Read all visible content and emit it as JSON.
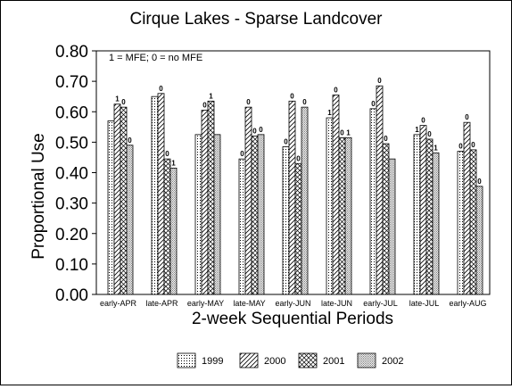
{
  "chart_data": {
    "type": "bar",
    "title": "Cirque Lakes - Sparse Landcover",
    "xlabel": "2-week Sequential Periods",
    "ylabel": "Proportional Use",
    "annotation": "1 = MFE; 0 = no MFE",
    "ylim": [
      0,
      0.8
    ],
    "yticks": [
      "0.00",
      "0.10",
      "0.20",
      "0.30",
      "0.40",
      "0.50",
      "0.60",
      "0.70",
      "0.80"
    ],
    "grid": false,
    "legend_position": "bottom-right",
    "categories": [
      "early-APR",
      "late-APR",
      "early-MAY",
      "late-MAY",
      "early-JUN",
      "late-JUN",
      "early-JUL",
      "late-JUL",
      "early-AUG"
    ],
    "series": [
      {
        "name": "1999",
        "pattern": "dots",
        "values": [
          0.57,
          0.65,
          0.525,
          0.445,
          0.485,
          0.58,
          0.61,
          0.525,
          0.47
        ],
        "flags": [
          "",
          "",
          "",
          "0",
          "0",
          "1",
          "0",
          "1",
          "0"
        ]
      },
      {
        "name": "2000",
        "pattern": "diagonal",
        "values": [
          0.625,
          0.66,
          0.605,
          0.615,
          0.635,
          0.655,
          0.685,
          0.555,
          0.565
        ],
        "flags": [
          "1",
          "0",
          "0",
          "0",
          "0",
          "0",
          "0",
          "0",
          "0"
        ]
      },
      {
        "name": "2001",
        "pattern": "crosshatch",
        "values": [
          0.615,
          0.445,
          0.635,
          0.52,
          0.43,
          0.515,
          0.495,
          0.51,
          0.475
        ],
        "flags": [
          "0",
          "0",
          "1",
          "0",
          "0",
          "0",
          "0",
          "0",
          "0"
        ]
      },
      {
        "name": "2002",
        "pattern": "dense",
        "values": [
          0.49,
          0.415,
          0.525,
          0.525,
          0.615,
          0.515,
          0.445,
          0.465,
          0.355
        ],
        "flags": [
          "0",
          "1",
          "",
          "0",
          "0",
          "1",
          "",
          "1",
          "0"
        ]
      }
    ],
    "colors": {
      "bar_fill": "#ffffff",
      "stroke": "#000000",
      "background": "#ffffff"
    }
  }
}
